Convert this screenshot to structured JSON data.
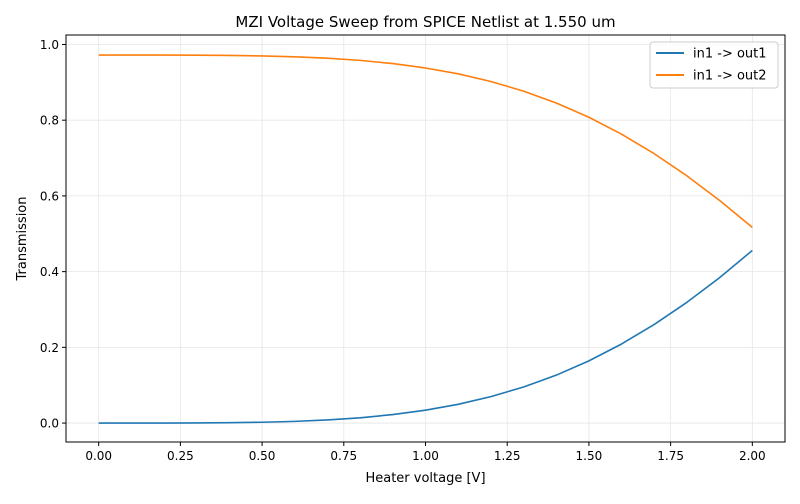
{
  "chart_data": {
    "type": "line",
    "title": "MZI Voltage Sweep from SPICE Netlist at 1.550 um",
    "xlabel": "Heater voltage [V]",
    "ylabel": "Transmission",
    "xlim": [
      -0.1,
      2.1
    ],
    "ylim": [
      -0.05,
      1.025
    ],
    "xticks": [
      "0.00",
      "0.25",
      "0.50",
      "0.75",
      "1.00",
      "1.25",
      "1.50",
      "1.75",
      "2.00"
    ],
    "yticks": [
      "0.0",
      "0.2",
      "0.4",
      "0.6",
      "0.8",
      "1.0"
    ],
    "grid": true,
    "legend_position": "top-right",
    "x": [
      0,
      0.1,
      0.2,
      0.3,
      0.4,
      0.5,
      0.6,
      0.7,
      0.8,
      0.9,
      1.0,
      1.1,
      1.2,
      1.3,
      1.4,
      1.5,
      1.6,
      1.7,
      1.8,
      1.9,
      2.0
    ],
    "series": [
      {
        "name": "in1 -> out1",
        "color": "#1f77b4",
        "values": [
          0,
          0,
          0.0001,
          0.0003,
          0.0009,
          0.0022,
          0.0045,
          0.0083,
          0.014,
          0.0224,
          0.0341,
          0.0496,
          0.0698,
          0.0952,
          0.1265,
          0.1643,
          0.2089,
          0.2606,
          0.319,
          0.3841,
          0.456
        ]
      },
      {
        "name": "in1 -> out2",
        "color": "#ff7f0e",
        "values": [
          0.972,
          0.972,
          0.9719,
          0.9717,
          0.9711,
          0.9698,
          0.9675,
          0.9637,
          0.958,
          0.9496,
          0.9379,
          0.9224,
          0.9022,
          0.8768,
          0.8455,
          0.8077,
          0.7631,
          0.7114,
          0.653,
          0.5879,
          0.517
        ]
      }
    ]
  }
}
